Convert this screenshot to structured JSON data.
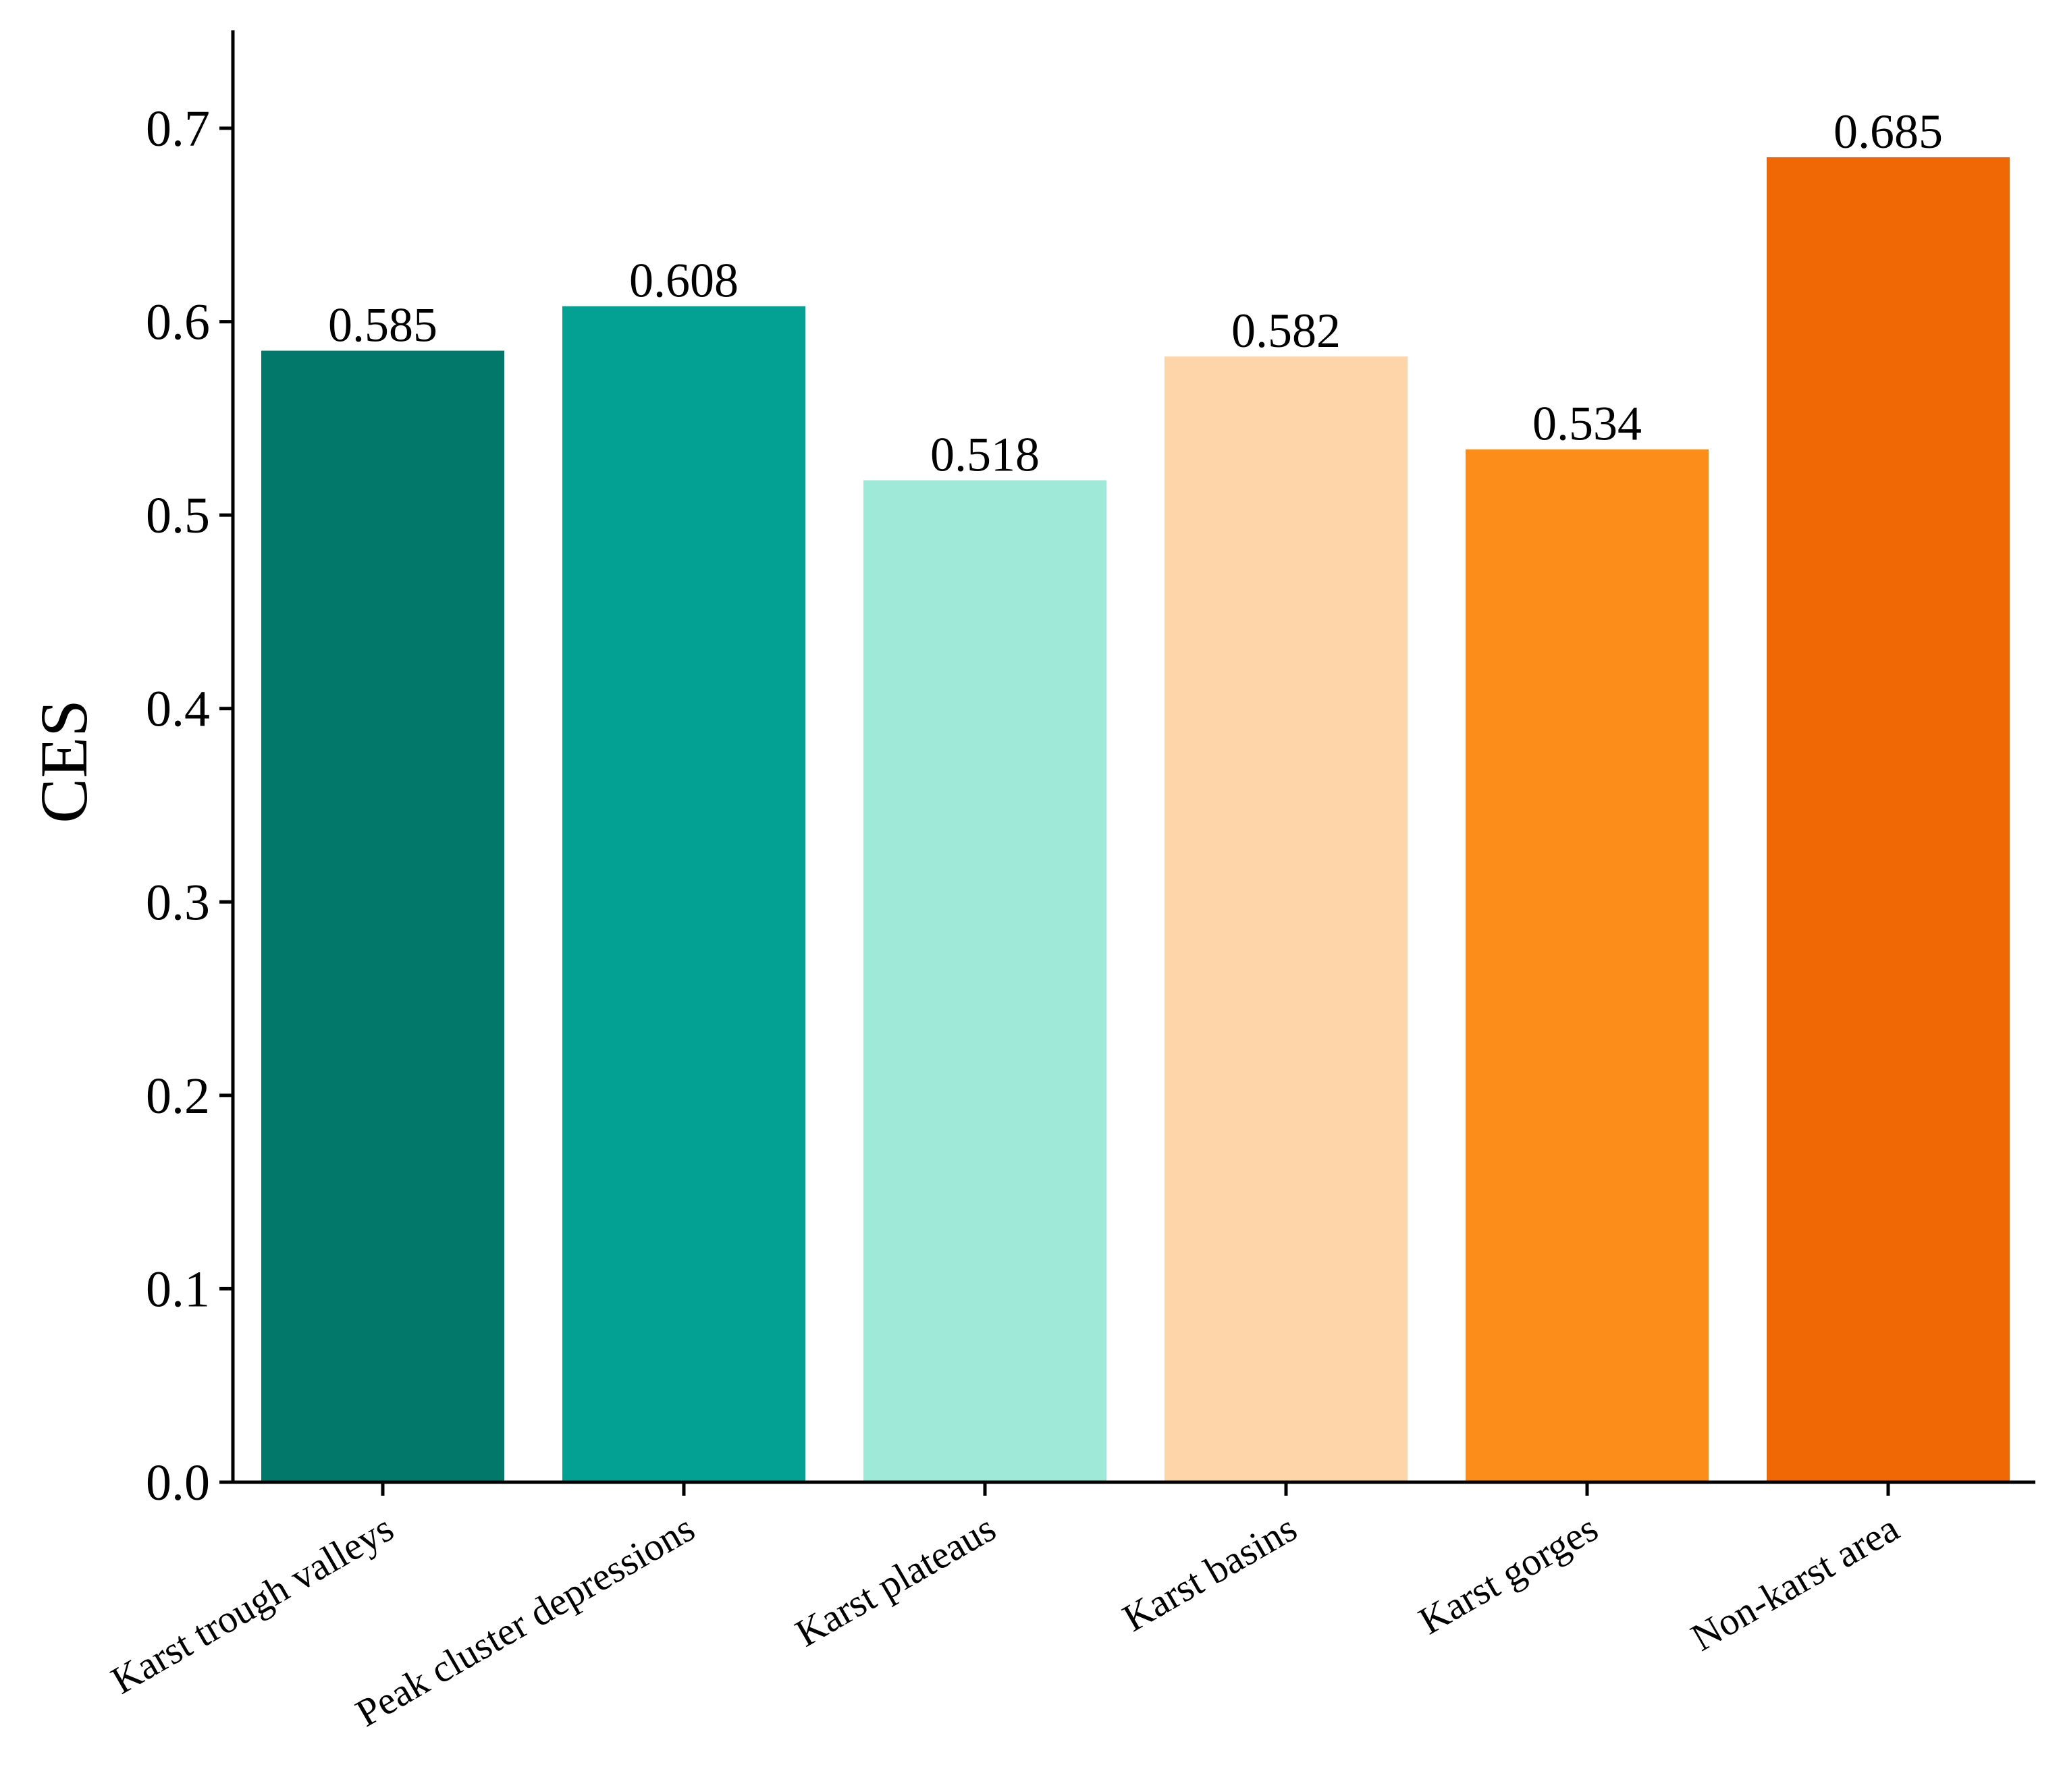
{
  "chart_data": {
    "type": "bar",
    "categories": [
      "Karst trough valleys",
      "Peak cluster depressions",
      "Karst plateaus",
      "Karst basins",
      "Karst gorges",
      "Non-karst area"
    ],
    "values": [
      0.585,
      0.608,
      0.518,
      0.582,
      0.534,
      0.685
    ],
    "value_labels": [
      "0.585",
      "0.608",
      "0.518",
      "0.582",
      "0.534",
      "0.685"
    ],
    "colors": [
      "#02786b",
      "#02a193",
      "#9ee9d8",
      "#fed5a8",
      "#fd8d1b",
      "#f06805"
    ],
    "ylabel": "CES",
    "xlabel": "",
    "ylim": [
      0,
      0.75
    ],
    "yticks": [
      "0.0",
      "0.1",
      "0.2",
      "0.3",
      "0.4",
      "0.5",
      "0.6",
      "0.7"
    ],
    "grid": false,
    "legend": "none"
  }
}
